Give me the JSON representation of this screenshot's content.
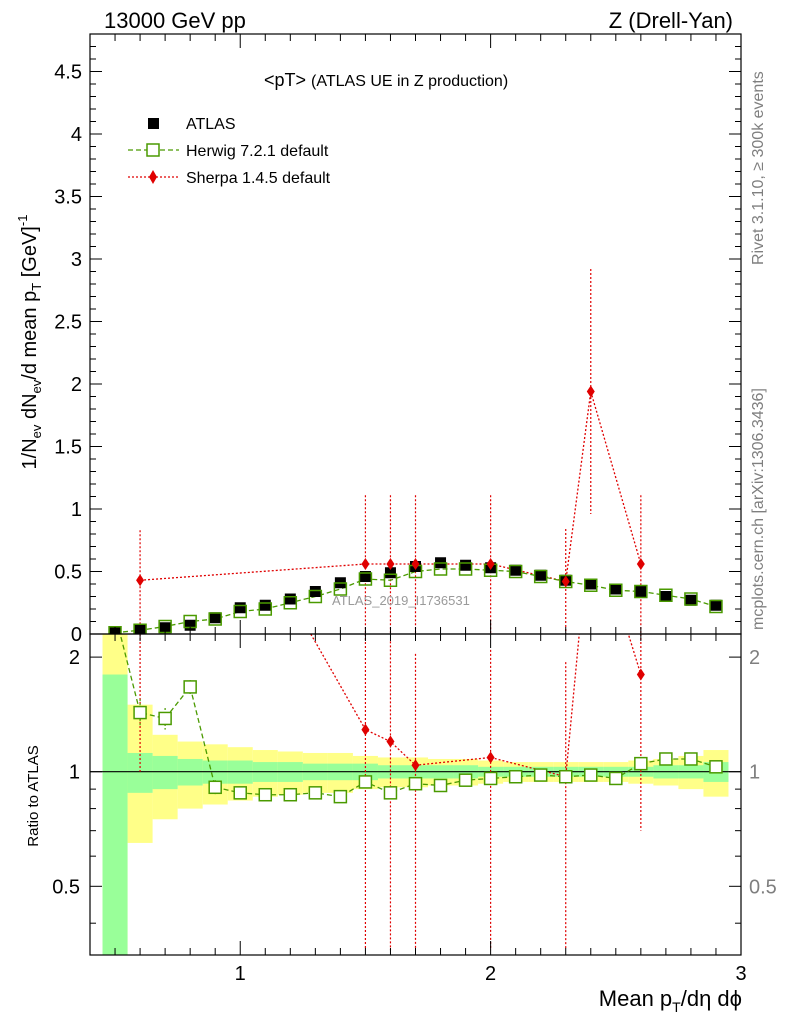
{
  "chart_data": {
    "type": "line",
    "header_left": "13000 GeV pp",
    "header_right": "Z (Drell-Yan)",
    "title_main": "<pT>",
    "title_sub": "(ATLAS UE in Z production)",
    "ylabel": "1/N_ev dN_ev/d mean p_T [GeV]^-1",
    "ylabel_parts": {
      "a": "1/N",
      "b": "ev",
      "c": " dN",
      "d": "ev",
      "e": "/d mean p",
      "f": "T",
      "g": " [GeV]",
      "h": "-1"
    },
    "xlabel_parts": {
      "a": "Mean p",
      "b": "T",
      "c": "/dη dϕ"
    },
    "ratio_ylabel": "Ratio to ATLAS",
    "watermark": "ATLAS_2019_I1736531",
    "side_text_top": "Rivet 3.1.10, ≥ 300k events",
    "side_text_bottom": "mcplots.cern.ch [arXiv:1306.3436]",
    "xlim": [
      0.4,
      3.0
    ],
    "ylim": [
      0,
      4.8
    ],
    "ratio_ylim": [
      0.33,
      2.3
    ],
    "x_ticks": [
      1,
      2,
      3
    ],
    "y_ticks": [
      0,
      0.5,
      1,
      1.5,
      2,
      2.5,
      3,
      3.5,
      4,
      4.5
    ],
    "y_tick_labels": [
      "0",
      "0.5",
      "1",
      "1.5",
      "2",
      "2.5",
      "3",
      "3.5",
      "4",
      "4.5"
    ],
    "ratio_ticks": [
      0.5,
      1,
      2
    ],
    "ratio_tick_labels": [
      "0.5",
      "1",
      "2"
    ],
    "x_tick_labels": [
      "1",
      "2",
      "3"
    ],
    "colors": {
      "atlas": "#000000",
      "herwig": "#4a9a00",
      "sherpa": "#e00000",
      "band_inner": "#99ff99",
      "band_outer": "#ffff88"
    },
    "legend": [
      {
        "name": "ATLAS",
        "marker": "filled-square"
      },
      {
        "name": "Herwig 7.2.1 default",
        "marker": "open-square"
      },
      {
        "name": "Sherpa 1.4.5 default",
        "marker": "diamond"
      }
    ],
    "series": [
      {
        "name": "ATLAS",
        "x": [
          0.5,
          0.6,
          0.7,
          0.8,
          0.9,
          1.0,
          1.1,
          1.2,
          1.3,
          1.4,
          1.5,
          1.6,
          1.7,
          1.8,
          1.9,
          2.0,
          2.1,
          2.2,
          2.3,
          2.4,
          2.5,
          2.6,
          2.7,
          2.8,
          2.9
        ],
        "y": [
          0.01,
          0.03,
          0.05,
          0.07,
          0.13,
          0.21,
          0.23,
          0.28,
          0.34,
          0.41,
          0.46,
          0.49,
          0.54,
          0.57,
          0.55,
          0.53,
          0.51,
          0.47,
          0.43,
          0.4,
          0.36,
          0.34,
          0.3,
          0.27,
          0.23
        ]
      },
      {
        "name": "Herwig 7.2.1 default",
        "x": [
          0.5,
          0.6,
          0.7,
          0.8,
          0.9,
          1.0,
          1.1,
          1.2,
          1.3,
          1.4,
          1.5,
          1.6,
          1.7,
          1.8,
          1.9,
          2.0,
          2.1,
          2.2,
          2.3,
          2.4,
          2.5,
          2.6,
          2.7,
          2.8,
          2.9
        ],
        "y": [
          0.01,
          0.03,
          0.06,
          0.1,
          0.12,
          0.18,
          0.2,
          0.25,
          0.3,
          0.36,
          0.44,
          0.43,
          0.5,
          0.52,
          0.52,
          0.51,
          0.5,
          0.46,
          0.42,
          0.39,
          0.35,
          0.34,
          0.31,
          0.28,
          0.22
        ],
        "ratio": [
          2.6,
          1.43,
          1.38,
          1.67,
          0.91,
          0.88,
          0.87,
          0.87,
          0.88,
          0.86,
          0.94,
          0.88,
          0.93,
          0.92,
          0.95,
          0.96,
          0.97,
          0.98,
          0.97,
          0.98,
          0.96,
          1.05,
          1.08,
          1.08,
          1.03
        ],
        "ratio_err": [
          0.15,
          0.12,
          0.09,
          0.07,
          0.04,
          0.03,
          0.03,
          0.03,
          0.03,
          0.03,
          0.03,
          0.03,
          0.02,
          0.02,
          0.02,
          0.02,
          0.02,
          0.02,
          0.02,
          0.02,
          0.02,
          0.02,
          0.03,
          0.03,
          0.04
        ]
      },
      {
        "name": "Sherpa 1.4.5 default",
        "x": [
          0.6,
          1.5,
          1.6,
          1.7,
          2.0,
          2.3,
          2.4,
          2.6
        ],
        "y": [
          0.43,
          0.56,
          0.56,
          0.56,
          0.56,
          0.42,
          1.94,
          0.56
        ],
        "y_err": [
          0.4,
          0.55,
          0.55,
          0.55,
          0.55,
          0.42,
          0.98,
          0.55
        ],
        "ratio": [
          14.0,
          1.29,
          1.2,
          1.04,
          1.09,
          0.97,
          4.8,
          1.8
        ],
        "ratio_err": [
          13.0,
          1.3,
          1.0,
          1.0,
          1.0,
          0.97,
          2.4,
          1.1
        ]
      }
    ],
    "ratio_band_edges": [
      0.45,
      0.55,
      0.65,
      0.75,
      0.85,
      0.95,
      1.05,
      1.15,
      1.25,
      1.35,
      1.45,
      1.55,
      1.65,
      1.75,
      1.85,
      1.95,
      2.05,
      2.15,
      2.25,
      2.35,
      2.45,
      2.55,
      2.65,
      2.75,
      2.85,
      2.95
    ],
    "ratio_band_inner": [
      [
        0.2,
        1.8
      ],
      [
        0.88,
        1.12
      ],
      [
        0.9,
        1.1
      ],
      [
        0.92,
        1.08
      ],
      [
        0.93,
        1.07
      ],
      [
        0.93,
        1.07
      ],
      [
        0.94,
        1.06
      ],
      [
        0.94,
        1.06
      ],
      [
        0.95,
        1.05
      ],
      [
        0.95,
        1.05
      ],
      [
        0.95,
        1.05
      ],
      [
        0.96,
        1.04
      ],
      [
        0.96,
        1.04
      ],
      [
        0.96,
        1.04
      ],
      [
        0.96,
        1.04
      ],
      [
        0.97,
        1.03
      ],
      [
        0.97,
        1.03
      ],
      [
        0.97,
        1.03
      ],
      [
        0.97,
        1.03
      ],
      [
        0.97,
        1.03
      ],
      [
        0.97,
        1.03
      ],
      [
        0.97,
        1.03
      ],
      [
        0.96,
        1.04
      ],
      [
        0.96,
        1.04
      ],
      [
        0.94,
        1.06
      ]
    ],
    "ratio_band_outer": [
      [
        0.2,
        2.6
      ],
      [
        0.65,
        1.5
      ],
      [
        0.75,
        1.25
      ],
      [
        0.8,
        1.2
      ],
      [
        0.82,
        1.18
      ],
      [
        0.84,
        1.16
      ],
      [
        0.86,
        1.14
      ],
      [
        0.87,
        1.13
      ],
      [
        0.88,
        1.12
      ],
      [
        0.88,
        1.12
      ],
      [
        0.9,
        1.1
      ],
      [
        0.91,
        1.09
      ],
      [
        0.91,
        1.09
      ],
      [
        0.92,
        1.08
      ],
      [
        0.92,
        1.08
      ],
      [
        0.93,
        1.07
      ],
      [
        0.94,
        1.06
      ],
      [
        0.94,
        1.06
      ],
      [
        0.94,
        1.06
      ],
      [
        0.94,
        1.06
      ],
      [
        0.94,
        1.06
      ],
      [
        0.93,
        1.07
      ],
      [
        0.92,
        1.08
      ],
      [
        0.9,
        1.1
      ],
      [
        0.86,
        1.14
      ]
    ]
  }
}
